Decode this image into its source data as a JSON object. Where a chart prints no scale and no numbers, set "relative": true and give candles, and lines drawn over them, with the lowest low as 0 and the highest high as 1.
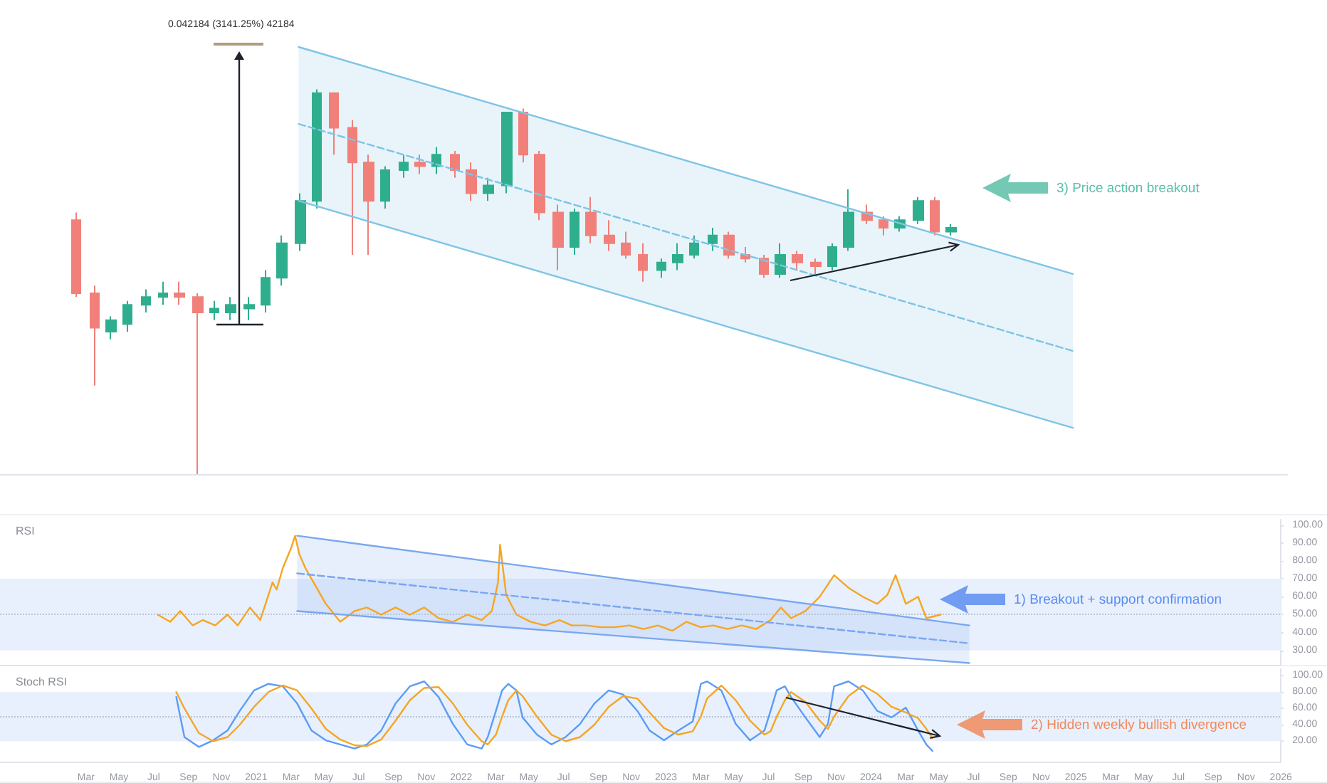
{
  "chart_data": [
    {
      "type": "candlestick",
      "relative": true,
      "tick_labels": false,
      "xlim": [
        2019.75,
        2026.0
      ],
      "x": [
        2020.12,
        2020.21,
        2020.29,
        2020.37,
        2020.46,
        2020.54,
        2020.62,
        2020.71,
        2020.79,
        2020.87,
        2020.96,
        2021.04,
        2021.12,
        2021.21,
        2021.29,
        2021.37,
        2021.46,
        2021.54,
        2021.62,
        2021.71,
        2021.79,
        2021.87,
        2021.96,
        2022.04,
        2022.12,
        2022.21,
        2022.29,
        2022.37,
        2022.46,
        2022.54,
        2022.62,
        2022.71,
        2022.79,
        2022.87,
        2022.96,
        2023.04,
        2023.12,
        2023.21,
        2023.29,
        2023.37,
        2023.46,
        2023.54,
        2023.62,
        2023.71,
        2023.79,
        2023.87,
        2023.96,
        2024.04,
        2024.12,
        2024.21,
        2024.29,
        2024.37
      ],
      "ohlc": [
        [
          0.66,
          0.68,
          0.46,
          0.47
        ],
        [
          0.47,
          0.49,
          0.23,
          0.38
        ],
        [
          0.37,
          0.41,
          0.35,
          0.4
        ],
        [
          0.39,
          0.45,
          0.37,
          0.44
        ],
        [
          0.44,
          0.48,
          0.42,
          0.46
        ],
        [
          0.46,
          0.5,
          0.44,
          0.47
        ],
        [
          0.47,
          0.5,
          0.44,
          0.46
        ],
        [
          0.46,
          0.47,
          0,
          0.42
        ],
        [
          0.42,
          0.45,
          0.4,
          0.43
        ],
        [
          0.42,
          0.46,
          0.4,
          0.44
        ],
        [
          0.43,
          0.46,
          0.4,
          0.44
        ],
        [
          0.44,
          0.53,
          0.42,
          0.51
        ],
        [
          0.51,
          0.62,
          0.49,
          0.6
        ],
        [
          0.6,
          0.73,
          0.58,
          0.71
        ],
        [
          0.71,
          1,
          0.69,
          0.99
        ],
        [
          0.99,
          0.99,
          0.83,
          0.9
        ],
        [
          0.9,
          0.92,
          0.57,
          0.81
        ],
        [
          0.81,
          0.83,
          0.57,
          0.71
        ],
        [
          0.71,
          0.8,
          0.69,
          0.79
        ],
        [
          0.79,
          0.83,
          0.77,
          0.81
        ],
        [
          0.81,
          0.83,
          0.78,
          0.8
        ],
        [
          0.8,
          0.85,
          0.78,
          0.83
        ],
        [
          0.83,
          0.84,
          0.77,
          0.79
        ],
        [
          0.79,
          0.81,
          0.71,
          0.73
        ],
        [
          0.73,
          0.77,
          0.71,
          0.75
        ],
        [
          0.75,
          0.94,
          0.73,
          0.94
        ],
        [
          0.94,
          0.95,
          0.81,
          0.83
        ],
        [
          0.83,
          0.84,
          0.66,
          0.68
        ],
        [
          0.68,
          0.7,
          0.53,
          0.59
        ],
        [
          0.59,
          0.69,
          0.57,
          0.68
        ],
        [
          0.68,
          0.72,
          0.6,
          0.62
        ],
        [
          0.62,
          0.66,
          0.58,
          0.6
        ],
        [
          0.6,
          0.63,
          0.56,
          0.57
        ],
        [
          0.57,
          0.6,
          0.5,
          0.53
        ],
        [
          0.53,
          0.56,
          0.51,
          0.55
        ],
        [
          0.55,
          0.6,
          0.53,
          0.57
        ],
        [
          0.57,
          0.62,
          0.56,
          0.6
        ],
        [
          0.6,
          0.64,
          0.58,
          0.62
        ],
        [
          0.62,
          0.63,
          0.56,
          0.57
        ],
        [
          0.57,
          0.59,
          0.55,
          0.56
        ],
        [
          0.56,
          0.57,
          0.51,
          0.52
        ],
        [
          0.52,
          0.6,
          0.51,
          0.57
        ],
        [
          0.57,
          0.58,
          0.53,
          0.55
        ],
        [
          0.55,
          0.56,
          0.52,
          0.54
        ],
        [
          0.54,
          0.6,
          0.53,
          0.59
        ],
        [
          0.59,
          0.74,
          0.58,
          0.68
        ],
        [
          0.68,
          0.7,
          0.65,
          0.66
        ],
        [
          0.66,
          0.67,
          0.62,
          0.64
        ],
        [
          0.64,
          0.67,
          0.63,
          0.66
        ],
        [
          0.66,
          0.72,
          0.65,
          0.71
        ],
        [
          0.71,
          0.72,
          0.62,
          0.63
        ],
        [
          0.63,
          0.65,
          0.62,
          0.64
        ]
      ],
      "colors": [
        "#f1807a",
        "#f1807a",
        "#2fae8e",
        "#2fae8e",
        "#2fae8e",
        "#2fae8e",
        "#f1807a",
        "#f1807a",
        "#2fae8e",
        "#2fae8e",
        "#2fae8e",
        "#2fae8e",
        "#2fae8e",
        "#2fae8e",
        "#2fae8e",
        "#f1807a",
        "#f1807a",
        "#f1807a",
        "#2fae8e",
        "#2fae8e",
        "#f1807a",
        "#2fae8e",
        "#f1807a",
        "#f1807a",
        "#2fae8e",
        "#2fae8e",
        "#f1807a",
        "#f1807a",
        "#f1807a",
        "#2fae8e",
        "#f1807a",
        "#f1807a",
        "#f1807a",
        "#f1807a",
        "#2fae8e",
        "#2fae8e",
        "#2fae8e",
        "#2fae8e",
        "#f1807a",
        "#f1807a",
        "#f1807a",
        "#2fae8e",
        "#f1807a",
        "#f1807a",
        "#2fae8e",
        "#2fae8e",
        "#f1807a",
        "#f1807a",
        "#2fae8e",
        "#2fae8e",
        "#f1807a",
        "#2fae8e"
      ],
      "series": [
        {
          "type": "line",
          "x": [
            2021.2,
            2024.96
          ],
          "values": [
            1.11,
            0.52
          ],
          "color": "#7fc4e6"
        },
        {
          "type": "line",
          "x": [
            2021.2,
            2024.96
          ],
          "values": [
            0.91,
            0.32
          ],
          "lower": [
            0.71,
            0.12
          ],
          "upper": [
            1.11,
            0.52
          ],
          "color": "#7fc4e6",
          "line_style": "dashed"
        },
        {
          "type": "line",
          "x": [
            2021.2,
            2024.96
          ],
          "values": [
            0.71,
            0.12
          ],
          "color": "#7fc4e6"
        }
      ],
      "annotations": [
        "0.042184 (3141.25%) 42184",
        "3) Price action breakout"
      ]
    },
    {
      "type": "line",
      "title": "RSI",
      "tick_labels": "y",
      "xlim": [
        2019.75,
        2026.0
      ],
      "ylim": [
        22,
        103
      ],
      "yticks": [
        {
          "value": 30,
          "label": "30.00"
        },
        {
          "value": 40,
          "label": "40.00"
        },
        {
          "value": 50,
          "label": "50.00"
        },
        {
          "value": 60,
          "label": "60.00"
        },
        {
          "value": 70,
          "label": "70.00"
        },
        {
          "value": 80,
          "label": "80.00"
        },
        {
          "value": 90,
          "label": "90.00"
        },
        {
          "value": 100,
          "label": "100.00"
        }
      ],
      "series": [
        {
          "x": [
            2020.52,
            2020.58,
            2020.63,
            2020.69,
            2020.74,
            2020.8,
            2020.86,
            2020.91,
            2020.97,
            2021.02,
            2021.08,
            2021.1,
            2021.13,
            2021.17,
            2021.19,
            2021.21,
            2021.24,
            2021.28,
            2021.34,
            2021.41,
            2021.48,
            2021.54,
            2021.61,
            2021.68,
            2021.75,
            2021.82,
            2021.89,
            2021.96,
            2022.03,
            2022.1,
            2022.15,
            2022.18,
            2022.19,
            2022.22,
            2022.27,
            2022.34,
            2022.41,
            2022.48,
            2022.54,
            2022.61,
            2022.68,
            2022.75,
            2022.82,
            2022.89,
            2022.96,
            2023.03,
            2023.1,
            2023.17,
            2023.23,
            2023.3,
            2023.37,
            2023.44,
            2023.51,
            2023.56,
            2023.61,
            2023.68,
            2023.75,
            2023.82,
            2023.89,
            2023.96,
            2024.03,
            2024.08,
            2024.12,
            2024.17,
            2024.23,
            2024.27,
            2024.34
          ],
          "values": [
            50,
            46,
            52,
            44,
            47,
            44,
            50,
            44,
            54,
            47,
            68,
            64,
            76,
            87,
            94,
            84,
            76,
            68,
            56,
            46,
            52,
            54,
            50,
            54,
            50,
            54,
            48,
            46,
            50,
            47,
            52,
            68,
            89,
            61,
            50,
            46,
            44,
            47,
            44,
            44,
            43,
            43,
            44,
            42,
            44,
            41,
            46,
            43,
            44,
            42,
            44,
            42,
            47,
            54,
            48,
            52,
            60,
            72,
            65,
            60,
            56,
            61,
            72,
            56,
            60,
            48,
            50
          ],
          "color": "#f5a623"
        },
        {
          "x": [
            2021.2,
            2024.48
          ],
          "values": [
            94,
            44
          ],
          "color": "#7aa7ef"
        },
        {
          "x": [
            2021.2,
            2024.48
          ],
          "values": [
            73,
            34
          ],
          "lower": [
            52,
            23
          ],
          "upper": [
            94,
            44
          ],
          "color": "#7aa7ef",
          "line_style": "dashed"
        },
        {
          "x": [
            2021.2,
            2024.48
          ],
          "values": [
            52,
            23
          ],
          "color": "#7aa7ef"
        }
      ],
      "bands": [
        {
          "axis": "y",
          "from": 30,
          "to": 70,
          "color": "#e8f0fd"
        }
      ],
      "ref_lines": [
        {
          "axis": "y",
          "value": 50,
          "line_style": "dotted",
          "color": "#b8c4d6"
        }
      ],
      "annotations": [
        "1) Breakout + support confirmation"
      ]
    },
    {
      "type": "line",
      "title": "Stoch RSI",
      "xlim": [
        2019.75,
        2026.0
      ],
      "ylim": [
        -5,
        108
      ],
      "xticks": [
        {
          "value": 2020.17,
          "label": "Mar"
        },
        {
          "value": 2020.33,
          "label": "May"
        },
        {
          "value": 2020.5,
          "label": "Jul"
        },
        {
          "value": 2020.67,
          "label": "Sep"
        },
        {
          "value": 2020.83,
          "label": "Nov"
        },
        2021,
        {
          "value": 2021.17,
          "label": "Mar"
        },
        {
          "value": 2021.33,
          "label": "May"
        },
        {
          "value": 2021.5,
          "label": "Jul"
        },
        {
          "value": 2021.67,
          "label": "Sep"
        },
        {
          "value": 2021.83,
          "label": "Nov"
        },
        2022,
        {
          "value": 2022.17,
          "label": "Mar"
        },
        {
          "value": 2022.33,
          "label": "May"
        },
        {
          "value": 2022.5,
          "label": "Jul"
        },
        {
          "value": 2022.67,
          "label": "Sep"
        },
        {
          "value": 2022.83,
          "label": "Nov"
        },
        2023,
        {
          "value": 2023.17,
          "label": "Mar"
        },
        {
          "value": 2023.33,
          "label": "May"
        },
        {
          "value": 2023.5,
          "label": "Jul"
        },
        {
          "value": 2023.67,
          "label": "Sep"
        },
        {
          "value": 2023.83,
          "label": "Nov"
        },
        2024,
        {
          "value": 2024.17,
          "label": "Mar"
        },
        {
          "value": 2024.33,
          "label": "May"
        },
        {
          "value": 2024.5,
          "label": "Jul"
        },
        {
          "value": 2024.67,
          "label": "Sep"
        },
        {
          "value": 2024.83,
          "label": "Nov"
        },
        2025,
        {
          "value": 2025.17,
          "label": "Mar"
        },
        {
          "value": 2025.33,
          "label": "May"
        },
        {
          "value": 2025.5,
          "label": "Jul"
        },
        {
          "value": 2025.67,
          "label": "Sep"
        },
        {
          "value": 2025.83,
          "label": "Nov"
        },
        2026
      ],
      "yticks": [
        {
          "value": 20,
          "label": "20.00"
        },
        {
          "value": 40,
          "label": "40.00"
        },
        {
          "value": 60,
          "label": "60.00"
        },
        {
          "value": 80,
          "label": "80.00"
        },
        {
          "value": 100,
          "label": "100.00"
        }
      ],
      "x": [
        2020.61,
        2020.65,
        2020.72,
        2020.79,
        2020.86,
        2020.92,
        2020.99,
        2021.06,
        2021.13,
        2021.2,
        2021.27,
        2021.34,
        2021.41,
        2021.48,
        2021.54,
        2021.61,
        2021.68,
        2021.75,
        2021.82,
        2021.89,
        2021.96,
        2022.03,
        2022.1,
        2022.13,
        2022.17,
        2022.2,
        2022.23,
        2022.27,
        2022.3,
        2022.37,
        2022.44,
        2022.51,
        2022.58,
        2022.65,
        2022.72,
        2022.79,
        2022.86,
        2022.92,
        2022.99,
        2023.06,
        2023.13,
        2023.17,
        2023.2,
        2023.27,
        2023.34,
        2023.41,
        2023.48,
        2023.51,
        2023.54,
        2023.58,
        2023.61,
        2023.68,
        2023.75,
        2023.79,
        2023.82,
        2023.89,
        2023.96,
        2024.03,
        2024.1,
        2024.17,
        2024.23,
        2024.27,
        2024.3
      ],
      "series": [
        {
          "values": [
            74,
            25,
            13,
            21,
            33,
            57,
            82,
            90,
            87,
            66,
            33,
            21,
            16,
            11,
            16,
            33,
            66,
            87,
            93,
            74,
            41,
            16,
            11,
            25,
            57,
            82,
            90,
            82,
            49,
            28,
            16,
            25,
            41,
            66,
            82,
            77,
            57,
            33,
            21,
            33,
            44,
            90,
            93,
            82,
            41,
            21,
            33,
            57,
            82,
            87,
            74,
            49,
            25,
            41,
            87,
            93,
            82,
            57,
            49,
            61,
            33,
            16,
            8
          ],
          "color": "#5b9cf6"
        },
        {
          "values": [
            80,
            60,
            30,
            20,
            25,
            40,
            62,
            80,
            88,
            82,
            60,
            35,
            22,
            15,
            14,
            22,
            45,
            70,
            85,
            86,
            66,
            40,
            20,
            16,
            28,
            50,
            70,
            82,
            75,
            50,
            28,
            20,
            25,
            40,
            62,
            75,
            72,
            55,
            36,
            28,
            32,
            50,
            72,
            88,
            70,
            45,
            28,
            32,
            50,
            70,
            80,
            68,
            45,
            35,
            50,
            75,
            88,
            78,
            62,
            55,
            48,
            35,
            24
          ],
          "color": "#f5a623"
        }
      ],
      "bands": [
        {
          "axis": "y",
          "from": 20,
          "to": 80,
          "color": "#e8f0fd"
        }
      ],
      "ref_lines": [
        {
          "axis": "y",
          "value": 50,
          "line_style": "dotted",
          "color": "#b8c4d6"
        }
      ],
      "annotations": [
        "2) Hidden weekly bullish divergence"
      ]
    }
  ]
}
